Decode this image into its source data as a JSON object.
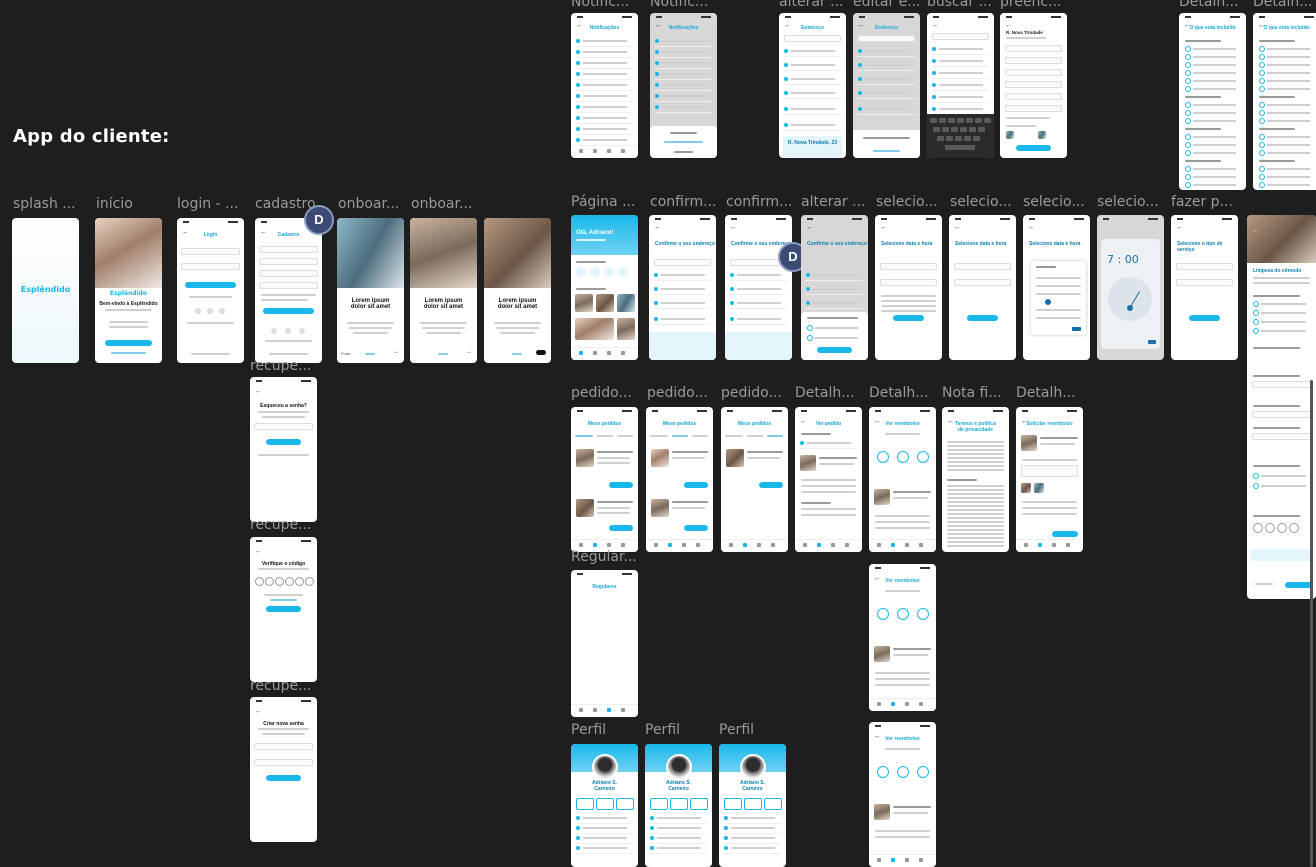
{
  "section_title": "App do cliente:",
  "cursor_badge": "D",
  "labels": {
    "notific1": "Notific...",
    "notific2": "Notific...",
    "alterar": "alterar ...",
    "editar": "editar e...",
    "buscar": "buscar ...",
    "preench": "preenc...",
    "detalh_top1": "Detalh...",
    "detalh_top2": "Detalh...",
    "splash": "splash ...",
    "inicio": "início",
    "login": "login - ...",
    "cadastro": "cadastro",
    "onboard1": "onboar...",
    "onboard2": "onboar...",
    "pagina": "Página ...",
    "confirm1": "confirm...",
    "confirm2": "confirm...",
    "alterar2": "alterar ...",
    "selecio1": "selecio...",
    "selecio2": "selecio...",
    "selecio3": "selecio...",
    "selecio4": "selecio...",
    "fazer": "fazer p...",
    "recupe1": "recupe...",
    "recupe2": "recupe...",
    "recupe3": "recupe...",
    "pedido1": "pedido...",
    "pedido2": "pedido...",
    "pedido3": "pedido...",
    "detalh1": "Detalh...",
    "detalh2": "Detalh...",
    "nota": "Nota fi...",
    "detalh3": "Detalh...",
    "regular": "Regular...",
    "perfil1": "Perfil",
    "perfil2": "Perfil",
    "perfil3": "Perfil"
  },
  "screens": {
    "notificacoes": "Notificações",
    "endereco": "Endereço",
    "novo_endereco": "R. Nova Trindade",
    "novo_endereco_full": "R. Nova Trindade, 23",
    "o_que_inclui": "O que está incluído",
    "login": "Login",
    "cadastro": "Cadastro",
    "logo": "Esplêndido",
    "welcome": "Bem-vindo à Esplêndido",
    "onboard_title": "Lorem ipsum dolor sit amet",
    "pular": "Pular",
    "ola": "Olá, Adriano!",
    "confirme": "Confirme o seu endereço",
    "selecione": "Selecione data e hora",
    "selecione_tipo": "Selecione o tipo de serviço",
    "limpeza": "Limpeza do cômodo",
    "esqueceu": "Esqueceu a senha?",
    "verifique": "Verifique o código",
    "criar_senha": "Criar nova senha",
    "meus_pedidos": "Meus pedidos",
    "ver_pedido": "Ver pedido",
    "ver_reembolso": "Ver reembolso",
    "termos": "Termos e política de privacidade",
    "solicitar": "Solicitar reembolso",
    "regulares": "Regulares",
    "perfil_nome": "Adriano S. Carneiro",
    "clock_time": "7 : 00"
  }
}
